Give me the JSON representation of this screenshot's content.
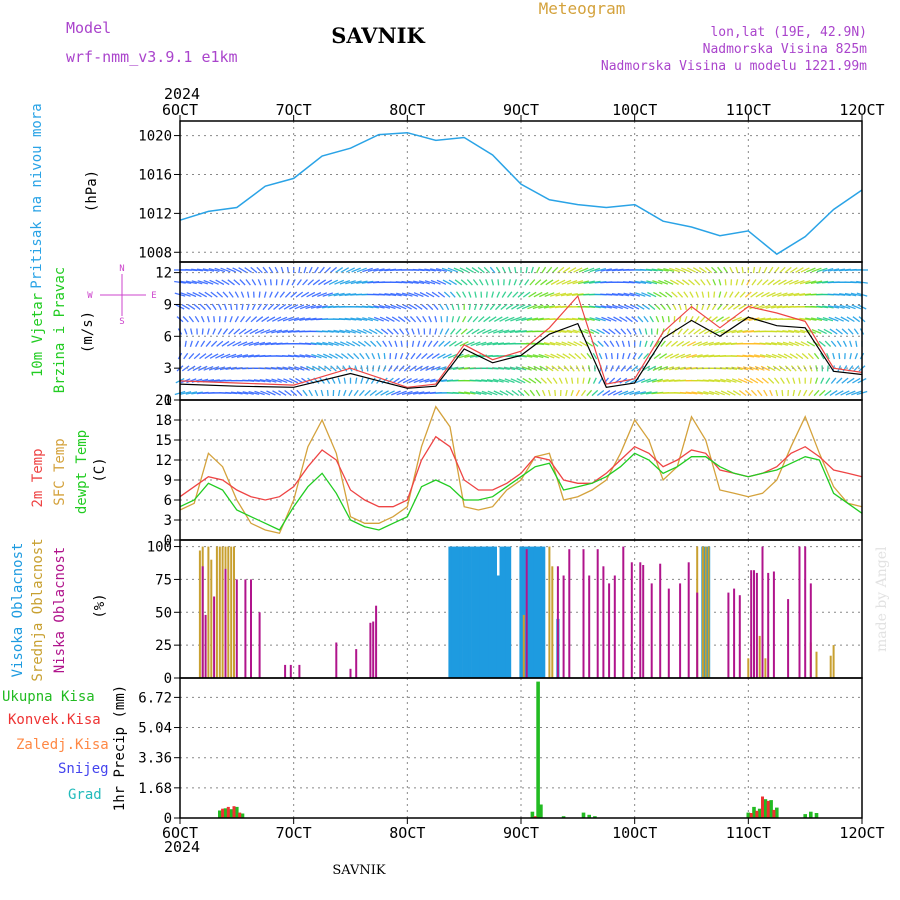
{
  "header": {
    "model_label": "Model",
    "model_name": "wrf-nmm_v3.9.1  e1km",
    "station_title": "SAVNIK",
    "product_title": "Meteogram",
    "lonlat": "lon,lat (19E, 42.9N)",
    "elevation": "Nadmorska Visina 825m",
    "model_elevation": "Nadmorska Visina u modelu 1221.99m",
    "footer_station": "SAVNIK",
    "credit": "made by Angel"
  },
  "colors": {
    "pressure": "#2aa3e6",
    "wind_label": "#22cc22",
    "t2m": "#ee4444",
    "sfc": "#d4a23c",
    "dewpt": "#22cc22",
    "cloud_high": "#1e9be0",
    "cloud_mid": "#c8a030",
    "cloud_low": "#b0148c",
    "precip_total": "#22bb22",
    "precip_conv": "#ee3333",
    "precip_frz": "#ff8844",
    "precip_snow": "#4444ee",
    "precip_hail": "#22bbbb",
    "header_purple": "#aa44cc",
    "header_orange": "#d4a23c"
  },
  "time_axis": {
    "year": "2024",
    "tick_labels": [
      "6OCT",
      "7OCT",
      "8OCT",
      "9OCT",
      "10OCT",
      "11OCT",
      "12OCT"
    ]
  },
  "chart_data": [
    {
      "type": "line",
      "panel": "pressure",
      "ylabel": "Pritisak na nivou mora",
      "unit": "(hPa)",
      "ylim": [
        1007,
        1021.5
      ],
      "yticks": [
        "1008",
        "1012",
        "1016",
        "1020"
      ],
      "x_days": [
        0,
        0.25,
        0.5,
        0.75,
        1.0,
        1.25,
        1.5,
        1.75,
        2.0,
        2.25,
        2.5,
        2.75,
        3.0,
        3.25,
        3.5,
        3.75,
        4.0,
        4.25,
        4.5,
        4.75,
        5.0,
        5.25,
        5.5,
        5.75,
        6.0
      ],
      "values": [
        1011.3,
        1012.2,
        1012.6,
        1014.8,
        1015.6,
        1017.9,
        1018.7,
        1020.1,
        1020.3,
        1019.5,
        1019.8,
        1018.0,
        1015.0,
        1013.4,
        1012.9,
        1012.6,
        1012.9,
        1011.2,
        1010.6,
        1009.7,
        1010.2,
        1007.8,
        1009.6,
        1012.4,
        1014.4
      ]
    },
    {
      "type": "line",
      "panel": "wind",
      "ylabel_1": "10m Vjetar",
      "ylabel_2": "Brzina i Pravac",
      "unit": "(m/s)",
      "compass": [
        "N",
        "E",
        "S",
        "W"
      ],
      "ylim": [
        0,
        13
      ],
      "yticks": [
        "0",
        "3",
        "6",
        "9",
        "12"
      ],
      "x_days": [
        0,
        0.5,
        1.0,
        1.5,
        2.0,
        2.25,
        2.5,
        2.75,
        3.0,
        3.25,
        3.5,
        3.75,
        4.0,
        4.25,
        4.5,
        4.75,
        5.0,
        5.25,
        5.5,
        5.75,
        6.0
      ],
      "speed": [
        1.5,
        1.3,
        1.2,
        2.5,
        1.1,
        1.3,
        4.8,
        3.5,
        4.2,
        6.2,
        7.2,
        1.2,
        1.6,
        5.8,
        7.5,
        6.0,
        7.8,
        7.0,
        6.8,
        2.7,
        2.4
      ],
      "gust": [
        1.8,
        1.6,
        1.4,
        3.0,
        1.2,
        1.5,
        5.2,
        3.8,
        4.6,
        6.8,
        9.8,
        1.5,
        2.0,
        6.4,
        8.8,
        6.8,
        8.8,
        8.2,
        7.4,
        3.0,
        2.6
      ]
    },
    {
      "type": "line",
      "panel": "temperature",
      "ylabel_1": "2m Temp",
      "ylabel_2": "SFC Temp",
      "ylabel_3": "dewpt Temp",
      "unit": "(C)",
      "ylim": [
        0,
        21
      ],
      "yticks": [
        "0",
        "3",
        "6",
        "9",
        "12",
        "15",
        "18",
        "21"
      ],
      "x_days": [
        0,
        0.125,
        0.25,
        0.375,
        0.5,
        0.625,
        0.75,
        0.875,
        1.0,
        1.125,
        1.25,
        1.375,
        1.5,
        1.625,
        1.75,
        1.875,
        2.0,
        2.125,
        2.25,
        2.375,
        2.5,
        2.625,
        2.75,
        2.875,
        3.0,
        3.125,
        3.25,
        3.375,
        3.5,
        3.625,
        3.75,
        3.875,
        4.0,
        4.125,
        4.25,
        4.375,
        4.5,
        4.625,
        4.75,
        4.875,
        5.0,
        5.125,
        5.25,
        5.375,
        5.5,
        5.625,
        5.75,
        5.875,
        6.0
      ],
      "t2m": [
        6.5,
        8.0,
        9.5,
        9.0,
        7.5,
        6.5,
        6.0,
        6.5,
        8.0,
        11.0,
        13.5,
        12.0,
        7.5,
        6.0,
        5.0,
        5.0,
        6.0,
        12.0,
        15.5,
        14.0,
        9.0,
        7.5,
        7.5,
        8.5,
        10.0,
        12.5,
        12.0,
        9.0,
        8.5,
        8.5,
        10.0,
        12.0,
        14.0,
        13.0,
        11.0,
        12.0,
        13.5,
        13.0,
        10.5,
        10.0,
        9.5,
        10.0,
        11.0,
        13.0,
        14.0,
        12.5,
        10.5,
        10.0,
        9.5
      ],
      "sfc": [
        4.5,
        5.5,
        13.0,
        11.0,
        6.0,
        2.5,
        1.5,
        1.0,
        6.0,
        14.0,
        18.0,
        13.0,
        3.5,
        2.5,
        2.5,
        3.5,
        5.0,
        14.0,
        20.0,
        17.0,
        5.0,
        4.5,
        5.0,
        7.5,
        9.0,
        12.5,
        13.0,
        6.0,
        6.5,
        7.5,
        9.0,
        13.0,
        18.0,
        15.0,
        9.0,
        11.0,
        18.5,
        15.0,
        7.5,
        7.0,
        6.5,
        7.0,
        9.0,
        14.0,
        18.5,
        13.0,
        8.0,
        5.5,
        5.0
      ],
      "dewpt": [
        5.0,
        6.0,
        8.5,
        7.5,
        4.5,
        3.5,
        2.5,
        1.5,
        5.0,
        8.0,
        10.0,
        7.0,
        3.0,
        2.0,
        1.5,
        2.5,
        3.5,
        8.0,
        9.0,
        8.0,
        6.0,
        6.0,
        6.5,
        8.0,
        9.5,
        11.0,
        11.5,
        7.5,
        8.0,
        8.5,
        9.5,
        11.0,
        13.0,
        12.0,
        10.0,
        11.0,
        12.5,
        12.5,
        11.0,
        10.0,
        9.5,
        10.0,
        10.5,
        11.5,
        12.5,
        12.0,
        7.0,
        5.5,
        4.0
      ]
    },
    {
      "type": "bar",
      "panel": "cloud",
      "ylabel_1": "Visoka Oblacnost",
      "ylabel_2": "Srednja Oblacnost",
      "ylabel_3": "Niska Oblacnost",
      "unit": "(%)",
      "ylim": [
        0,
        105
      ],
      "yticks": [
        "0",
        "25",
        "50",
        "75",
        "100"
      ],
      "series": [
        {
          "key": "high",
          "x_days": [
            2.375,
            2.4,
            2.425,
            2.45,
            2.475,
            2.5,
            2.525,
            2.55,
            2.575,
            2.6,
            2.625,
            2.65,
            2.675,
            2.7,
            2.725,
            2.75,
            2.775,
            2.8,
            2.825,
            2.85,
            2.875,
            2.9,
            3.0,
            3.025,
            3.05,
            3.075,
            3.1,
            3.125,
            3.15,
            3.175,
            3.2,
            3.325,
            4.6,
            4.625,
            4.65
          ],
          "values": [
            100,
            100,
            100,
            100,
            100,
            100,
            100,
            100,
            100,
            100,
            100,
            100,
            100,
            100,
            100,
            100,
            100,
            78,
            100,
            100,
            100,
            100,
            100,
            100,
            100,
            100,
            100,
            100,
            100,
            100,
            100,
            45,
            100,
            100,
            100
          ]
        },
        {
          "key": "mid",
          "x_days": [
            0.175,
            0.2,
            0.25,
            0.275,
            0.325,
            0.35,
            0.375,
            0.4,
            0.425,
            0.45,
            0.475,
            3.025,
            3.25,
            3.275,
            4.55,
            4.6,
            4.625,
            4.65,
            5.0,
            5.05,
            5.1,
            5.15,
            5.55,
            5.6,
            5.725,
            5.75
          ],
          "values": [
            97,
            100,
            100,
            90,
            100,
            100,
            100,
            100,
            100,
            100,
            100,
            48,
            100,
            85,
            100,
            100,
            100,
            100,
            15,
            20,
            32,
            15,
            27,
            20,
            17,
            25
          ]
        },
        {
          "key": "low",
          "x_days": [
            0.2,
            0.225,
            0.3,
            0.4,
            0.5,
            0.575,
            0.625,
            0.7,
            0.925,
            0.975,
            1.05,
            1.375,
            1.5,
            1.55,
            1.675,
            1.7,
            1.725,
            3.05,
            3.325,
            3.375,
            3.425,
            3.55,
            3.6,
            3.675,
            3.725,
            3.775,
            3.825,
            3.9,
            3.975,
            4.05,
            4.075,
            4.15,
            4.225,
            4.3,
            4.4,
            4.475,
            4.55,
            4.825,
            4.875,
            4.925,
            5.025,
            5.05,
            5.075,
            5.125,
            5.175,
            5.225,
            5.35,
            5.45,
            5.5,
            5.55
          ],
          "values": [
            85,
            48,
            62,
            83,
            75,
            75,
            75,
            50,
            10,
            10,
            10,
            27,
            7,
            22,
            42,
            43,
            55,
            98,
            85,
            78,
            98,
            98,
            78,
            98,
            85,
            72,
            78,
            100,
            88,
            88,
            86,
            72,
            87,
            68,
            72,
            88,
            65,
            65,
            68,
            63,
            82,
            82,
            80,
            100,
            80,
            81,
            60,
            100,
            100,
            72
          ]
        }
      ]
    },
    {
      "type": "bar",
      "panel": "precip",
      "ylabel_1": "Ukupna Kisa",
      "ylabel_2": "Konvek.Kisa",
      "ylabel_3": "Zaledj.Kisa",
      "ylabel_4": "Snijeg",
      "ylabel_5": "Grad",
      "unit": "1hr Precip (mm)",
      "ylim": [
        0,
        7.8
      ],
      "yticks": [
        "0",
        "1.68",
        "3.36",
        "5.04",
        "6.72"
      ],
      "total": {
        "x_days": [
          0.35,
          0.4,
          0.45,
          0.5,
          0.55,
          3.1,
          3.15,
          3.175,
          3.375,
          3.55,
          3.6,
          3.65,
          5.0,
          5.05,
          5.1,
          5.15,
          5.2,
          5.25,
          5.5,
          5.55,
          5.6
        ],
        "values": [
          0.42,
          0.54,
          0.49,
          0.62,
          0.25,
          0.35,
          7.6,
          0.75,
          0.1,
          0.3,
          0.18,
          0.1,
          0.3,
          0.62,
          0.52,
          1.05,
          1.0,
          0.58,
          0.22,
          0.35,
          0.28
        ]
      },
      "convective": {
        "x_days": [
          0.375,
          0.425,
          0.475,
          0.525,
          3.125,
          5.025,
          5.075,
          5.125,
          5.175,
          5.225
        ],
        "values": [
          0.52,
          0.62,
          0.66,
          0.3,
          0.1,
          0.28,
          0.4,
          1.2,
          0.95,
          0.45
        ]
      }
    }
  ]
}
